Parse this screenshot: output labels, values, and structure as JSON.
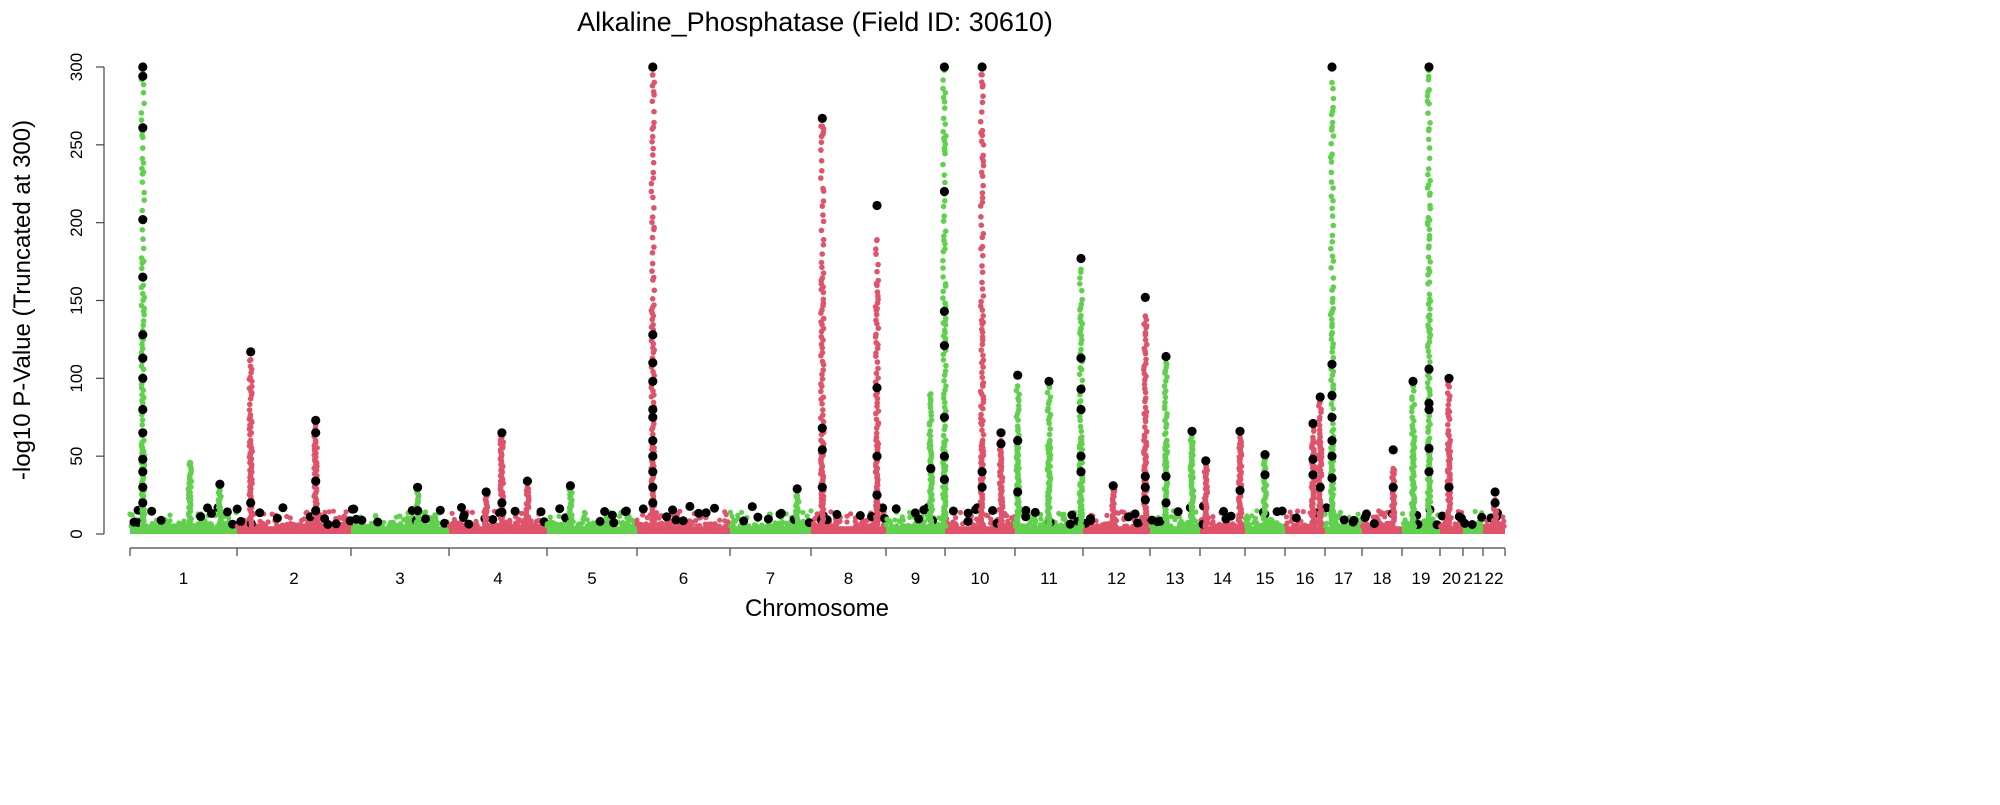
{
  "chart_data": {
    "type": "scatter",
    "subtype": "manhattan",
    "title": "Alkaline_Phosphatase (Field ID: 30610)",
    "xlabel": "Chromosome",
    "ylabel": "-log10 P-Value (Truncated at 300)",
    "ylim": [
      0,
      300
    ],
    "yticks": [
      "0",
      "50",
      "100",
      "150",
      "200",
      "250",
      "300"
    ],
    "colors": {
      "odd": "#61D04F",
      "even": "#DF536B",
      "lead": "#000000"
    },
    "chromosomes": [
      "1",
      "2",
      "3",
      "4",
      "5",
      "6",
      "7",
      "8",
      "9",
      "10",
      "11",
      "12",
      "13",
      "14",
      "15",
      "16",
      "17",
      "18",
      "19",
      "20",
      "21",
      "22"
    ],
    "peaks": [
      {
        "chr": 1,
        "pos": 0.12,
        "max": 300,
        "leads": [
          300,
          294,
          261,
          202,
          165,
          128,
          113,
          100,
          80,
          65,
          48,
          40,
          30,
          20
        ]
      },
      {
        "chr": 1,
        "pos": 0.56,
        "max": 46,
        "leads": []
      },
      {
        "chr": 1,
        "pos": 0.84,
        "max": 30,
        "leads": [
          32
        ]
      },
      {
        "chr": 2,
        "pos": 0.12,
        "max": 112,
        "leads": [
          117,
          20
        ]
      },
      {
        "chr": 2,
        "pos": 0.69,
        "max": 70,
        "leads": [
          73,
          65,
          34,
          15
        ]
      },
      {
        "chr": 3,
        "pos": 0.68,
        "max": 30,
        "leads": [
          30,
          15
        ]
      },
      {
        "chr": 4,
        "pos": 0.38,
        "max": 28,
        "leads": [
          27
        ]
      },
      {
        "chr": 4,
        "pos": 0.54,
        "max": 63,
        "leads": [
          65,
          20,
          14
        ]
      },
      {
        "chr": 4,
        "pos": 0.8,
        "max": 30,
        "leads": [
          34
        ]
      },
      {
        "chr": 5,
        "pos": 0.26,
        "max": 31,
        "leads": [
          31
        ]
      },
      {
        "chr": 6,
        "pos": 0.17,
        "max": 295,
        "leads": [
          300,
          128,
          110,
          98,
          80,
          75,
          60,
          50,
          40,
          30,
          20
        ]
      },
      {
        "chr": 7,
        "pos": 0.83,
        "max": 25,
        "leads": [
          29
        ]
      },
      {
        "chr": 8,
        "pos": 0.15,
        "max": 262,
        "leads": [
          267,
          68,
          54,
          30
        ]
      },
      {
        "chr": 8,
        "pos": 0.88,
        "max": 189,
        "leads": [
          211,
          94,
          50,
          25
        ]
      },
      {
        "chr": 9,
        "pos": 0.76,
        "max": 90,
        "leads": [
          42
        ]
      },
      {
        "chr": 9,
        "pos": 0.99,
        "max": 298,
        "leads": [
          300,
          220,
          143,
          121,
          75,
          50,
          35
        ]
      },
      {
        "chr": 10,
        "pos": 0.53,
        "max": 295,
        "leads": [
          300,
          40,
          30
        ]
      },
      {
        "chr": 10,
        "pos": 0.8,
        "max": 60,
        "leads": [
          65,
          58
        ]
      },
      {
        "chr": 11,
        "pos": 0.04,
        "max": 95,
        "leads": [
          102,
          60,
          27
        ]
      },
      {
        "chr": 11,
        "pos": 0.5,
        "max": 95,
        "leads": [
          98
        ]
      },
      {
        "chr": 11,
        "pos": 0.97,
        "max": 170,
        "leads": [
          177,
          113,
          93,
          80,
          50,
          40
        ]
      },
      {
        "chr": 12,
        "pos": 0.45,
        "max": 28,
        "leads": [
          31
        ]
      },
      {
        "chr": 12,
        "pos": 0.93,
        "max": 140,
        "leads": [
          152,
          37,
          30,
          22
        ]
      },
      {
        "chr": 13,
        "pos": 0.32,
        "max": 110,
        "leads": [
          114,
          37,
          20
        ]
      },
      {
        "chr": 13,
        "pos": 0.84,
        "max": 64,
        "leads": [
          66
        ]
      },
      {
        "chr": 14,
        "pos": 0.13,
        "max": 45,
        "leads": [
          47
        ]
      },
      {
        "chr": 14,
        "pos": 0.89,
        "max": 62,
        "leads": [
          66,
          28
        ]
      },
      {
        "chr": 15,
        "pos": 0.5,
        "max": 50,
        "leads": [
          51,
          38
        ]
      },
      {
        "chr": 16,
        "pos": 0.7,
        "max": 70,
        "leads": [
          71,
          48,
          38
        ]
      },
      {
        "chr": 16,
        "pos": 0.88,
        "max": 85,
        "leads": [
          88,
          30
        ]
      },
      {
        "chr": 17,
        "pos": 0.19,
        "max": 290,
        "leads": [
          300,
          109,
          89,
          75,
          60,
          50,
          36
        ]
      },
      {
        "chr": 18,
        "pos": 0.78,
        "max": 42,
        "leads": [
          54,
          30
        ]
      },
      {
        "chr": 19,
        "pos": 0.29,
        "max": 95,
        "leads": [
          98
        ]
      },
      {
        "chr": 19,
        "pos": 0.71,
        "max": 298,
        "leads": [
          300,
          106,
          84,
          80,
          55,
          40
        ]
      },
      {
        "chr": 20,
        "pos": 0.39,
        "max": 98,
        "leads": [
          100,
          30
        ]
      },
      {
        "chr": 22,
        "pos": 0.55,
        "max": 22,
        "leads": [
          27,
          20
        ]
      }
    ]
  }
}
